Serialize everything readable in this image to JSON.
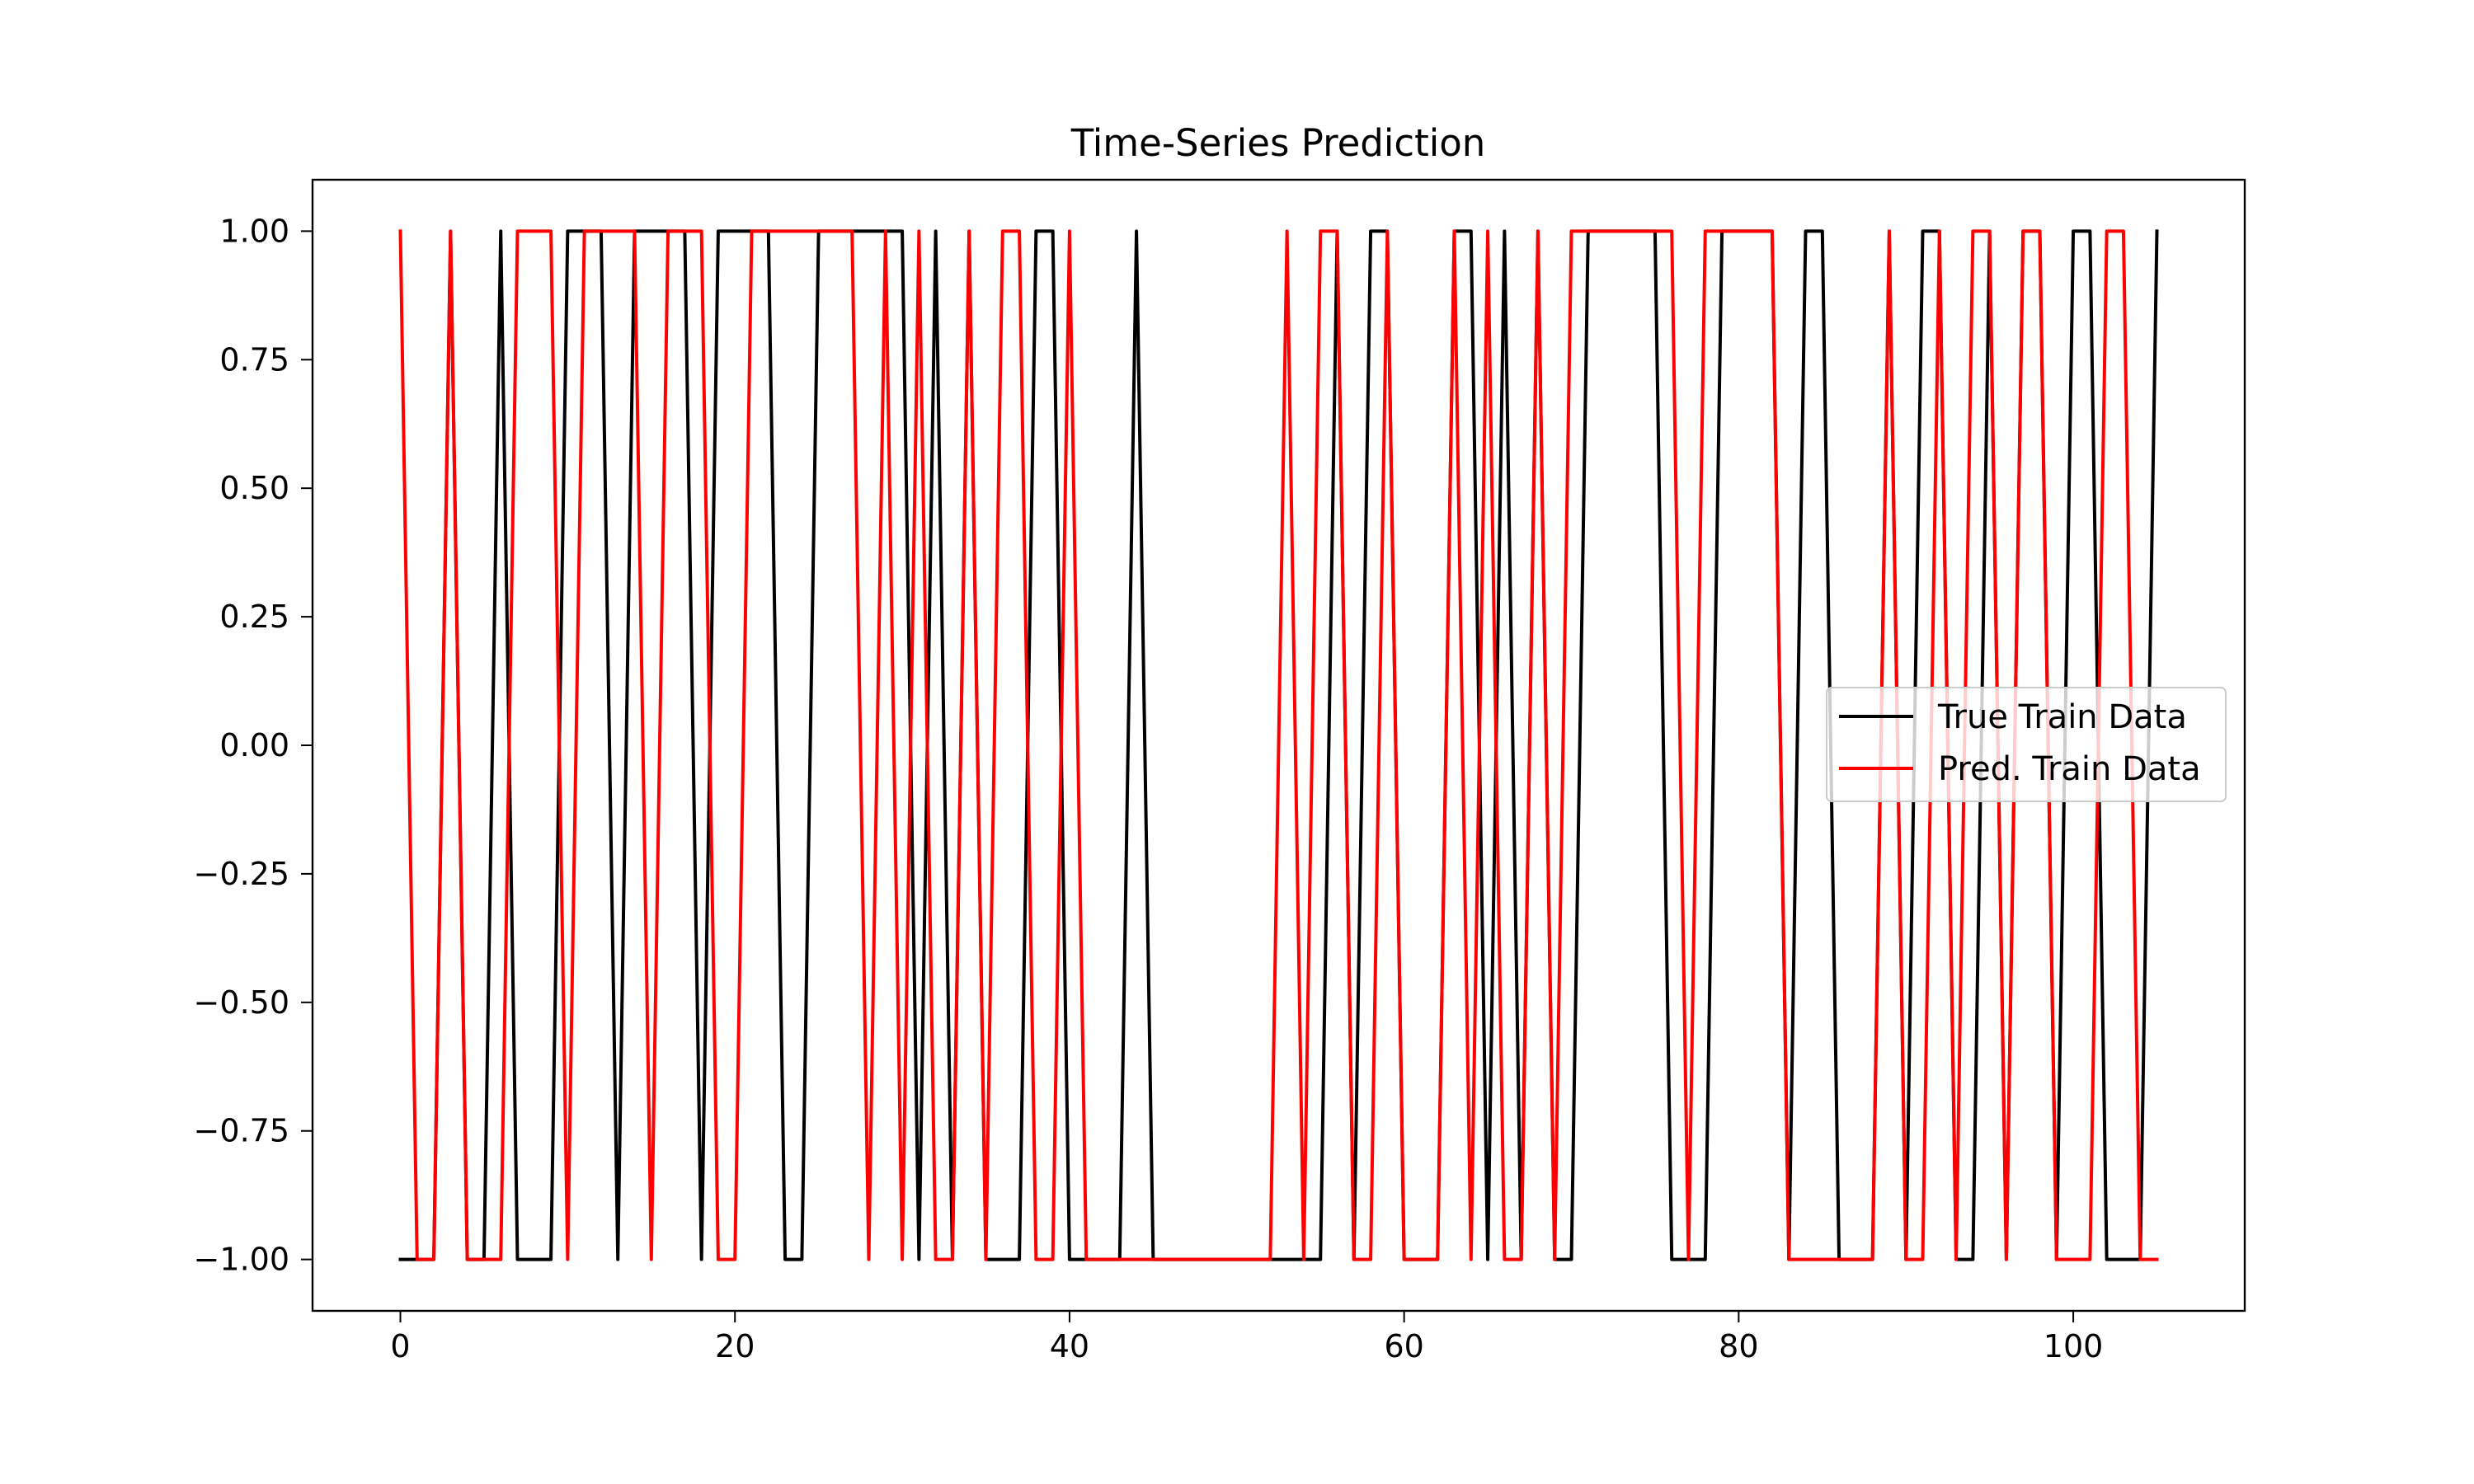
{
  "chart_data": {
    "type": "line",
    "title": "Time-Series Prediction",
    "xlabel": "",
    "ylabel": "",
    "xlim": [
      -5.25,
      110.25
    ],
    "ylim": [
      -1.1,
      1.1
    ],
    "xticks": [
      0,
      20,
      40,
      60,
      80,
      100
    ],
    "xtick_labels": [
      "0",
      "20",
      "40",
      "60",
      "80",
      "100"
    ],
    "yticks": [
      1.0,
      0.75,
      0.5,
      0.25,
      0.0,
      -0.25,
      -0.5,
      -0.75,
      -1.0
    ],
    "ytick_labels": [
      "1.00",
      "0.75",
      "0.50",
      "0.25",
      "0.00",
      "−0.25",
      "−0.50",
      "−0.75",
      "−1.00"
    ],
    "grid": false,
    "legend_position": "center-right",
    "x": [
      0,
      1,
      2,
      3,
      4,
      5,
      6,
      7,
      8,
      9,
      10,
      11,
      12,
      13,
      14,
      15,
      16,
      17,
      18,
      19,
      20,
      21,
      22,
      23,
      24,
      25,
      26,
      27,
      28,
      29,
      30,
      31,
      32,
      33,
      34,
      35,
      36,
      37,
      38,
      39,
      40,
      41,
      42,
      43,
      44,
      45,
      46,
      47,
      48,
      49,
      50,
      51,
      52,
      53,
      54,
      55,
      56,
      57,
      58,
      59,
      60,
      61,
      62,
      63,
      64,
      65,
      66,
      67,
      68,
      69,
      70,
      71,
      72,
      73,
      74,
      75,
      76,
      77,
      78,
      79,
      80,
      81,
      82,
      83,
      84,
      85,
      86,
      87,
      88,
      89,
      90,
      91,
      92,
      93,
      94,
      95,
      96,
      97,
      98,
      99,
      100,
      101,
      102,
      103,
      104,
      105
    ],
    "series": [
      {
        "name": "True Train Data",
        "color": "#000000",
        "values": [
          -1,
          -1,
          -1,
          1,
          -1,
          -1,
          1,
          -1,
          -1,
          -1,
          1,
          1,
          1,
          -1,
          1,
          1,
          1,
          1,
          -1,
          1,
          1,
          1,
          1,
          -1,
          -1,
          1,
          1,
          1,
          1,
          1,
          1,
          -1,
          1,
          -1,
          1,
          -1,
          -1,
          -1,
          1,
          1,
          -1,
          -1,
          -1,
          -1,
          1,
          -1,
          -1,
          -1,
          -1,
          -1,
          -1,
          -1,
          -1,
          -1,
          -1,
          -1,
          1,
          -1,
          1,
          1,
          -1,
          -1,
          -1,
          1,
          1,
          -1,
          1,
          -1,
          1,
          -1,
          -1,
          1,
          1,
          1,
          1,
          1,
          -1,
          -1,
          -1,
          1,
          1,
          1,
          1,
          -1,
          1,
          1,
          -1,
          -1,
          -1,
          1,
          -1,
          1,
          1,
          -1,
          -1,
          1,
          -1,
          1,
          1,
          -1,
          1,
          1,
          -1,
          -1,
          -1,
          1
        ]
      },
      {
        "name": "Pred. Train Data",
        "color": "#ff0000",
        "values": [
          1,
          -1,
          -1,
          1,
          -1,
          -1,
          -1,
          1,
          1,
          1,
          -1,
          1,
          1,
          1,
          1,
          -1,
          1,
          1,
          1,
          -1,
          -1,
          1,
          1,
          1,
          1,
          1,
          1,
          1,
          -1,
          1,
          -1,
          1,
          -1,
          -1,
          1,
          -1,
          1,
          1,
          -1,
          -1,
          1,
          -1,
          -1,
          -1,
          -1,
          -1,
          -1,
          -1,
          -1,
          -1,
          -1,
          -1,
          -1,
          1,
          -1,
          1,
          1,
          -1,
          -1,
          1,
          -1,
          -1,
          -1,
          1,
          -1,
          1,
          -1,
          -1,
          1,
          -1,
          1,
          1,
          1,
          1,
          1,
          1,
          1,
          -1,
          1,
          1,
          1,
          1,
          1,
          -1,
          -1,
          -1,
          -1,
          -1,
          -1,
          1,
          -1,
          -1,
          1,
          -1,
          1,
          1,
          -1,
          1,
          1,
          -1,
          -1,
          -1,
          1,
          1,
          -1,
          -1
        ]
      }
    ]
  }
}
